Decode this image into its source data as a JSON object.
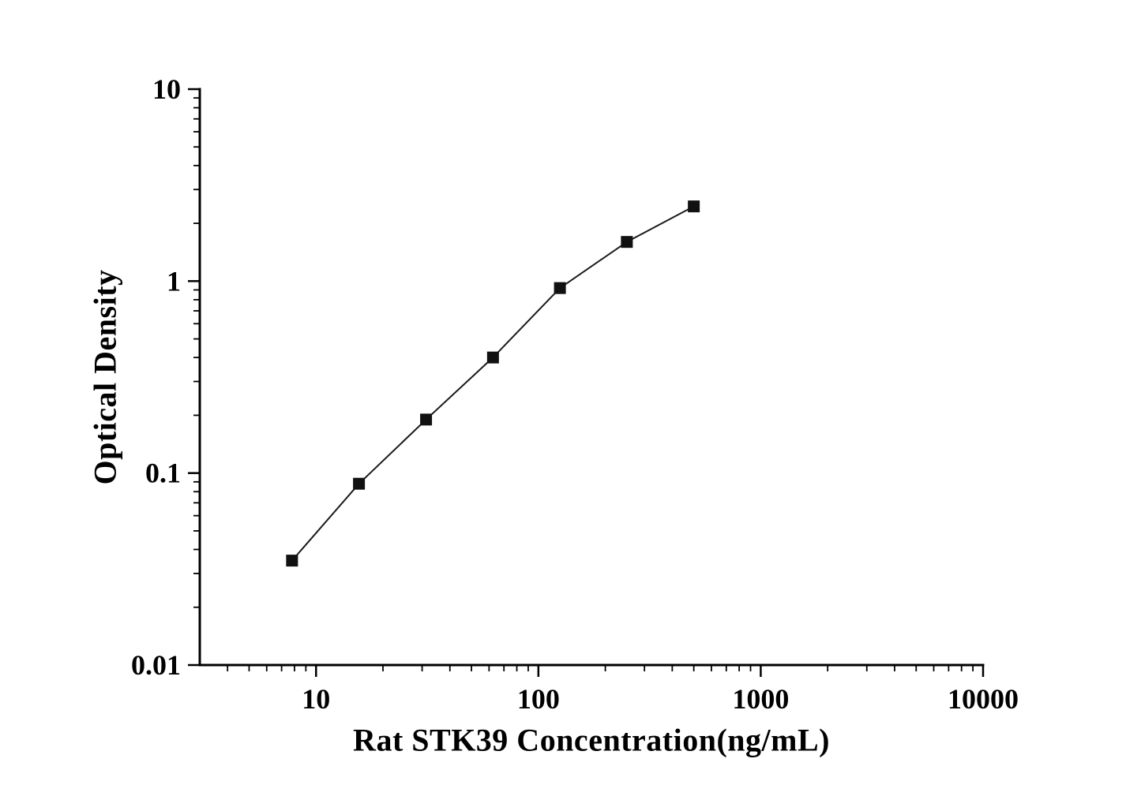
{
  "chart_data": {
    "type": "scatter",
    "subtype": "line-with-square-markers",
    "title": "",
    "xlabel": "Rat STK39 Concentration(ng/mL)",
    "ylabel": "Optical Density",
    "xscale": "log",
    "yscale": "log",
    "xlim": [
      3,
      10000
    ],
    "ylim": [
      0.01,
      10
    ],
    "x": [
      7.8,
      15.6,
      31.25,
      62.5,
      125,
      250,
      500
    ],
    "y": [
      0.035,
      0.088,
      0.19,
      0.4,
      0.92,
      1.6,
      2.45
    ],
    "x_major_ticks": [
      10,
      100,
      1000,
      10000
    ],
    "x_tick_labels": [
      "10",
      "100",
      "1000",
      "10000"
    ],
    "y_major_ticks": [
      0.01,
      0.1,
      1,
      10
    ],
    "y_tick_labels": [
      "0.01",
      "0.1",
      "1",
      "10"
    ],
    "minor_ticks": true,
    "grid": false,
    "legend": null,
    "marker": "filled-square",
    "colors": {
      "background": "#ffffff",
      "axis": "#000000",
      "line": "#1a1a1a",
      "marker": "#111111",
      "text": "#000000"
    }
  }
}
